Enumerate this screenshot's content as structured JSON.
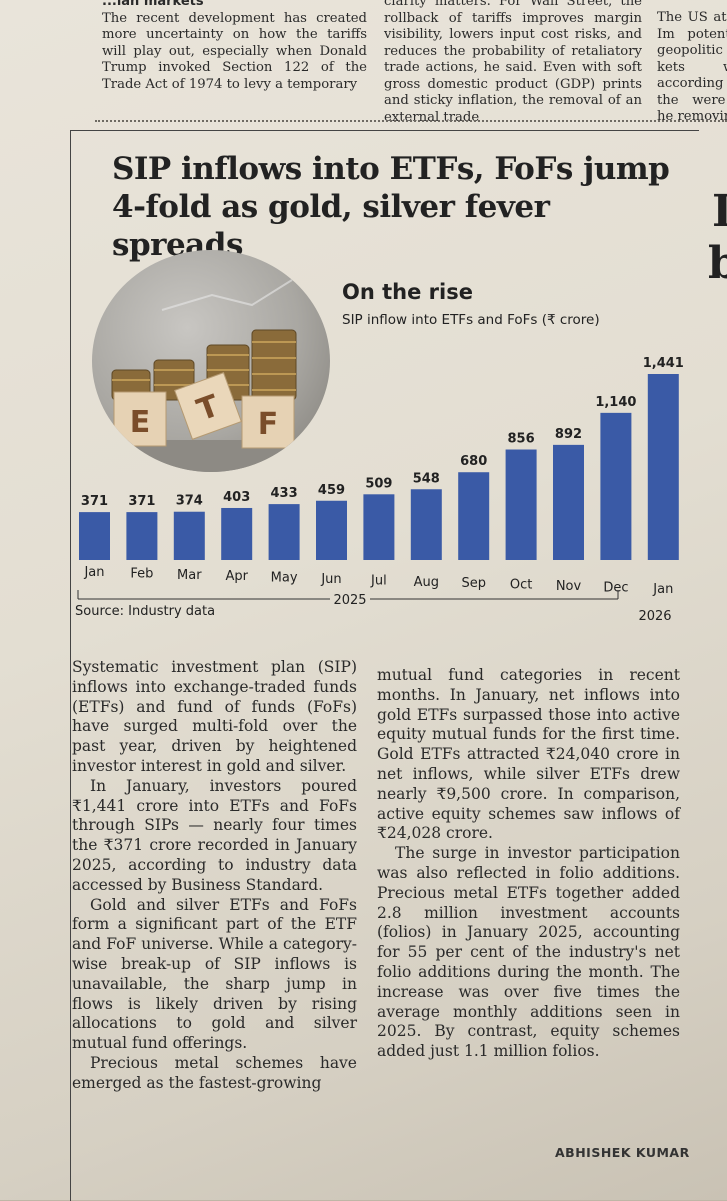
{
  "top_columns": {
    "col1_heading": "...ian markets",
    "col1_text": "The recent development has created more uncertainty on how the tariffs will play out, especially when Donald Trump invoked Section 122 of the Trade Act of 1974 to levy a temporary",
    "col2_text": "clarity matters. For Wall Street, the rollback of tariffs improves margin visibility, lowers input cost risks, and reduces the probability of retaliatory trade actions, he said. Even with soft gross domestic product (GDP) prints and sticky inflation, the removal of an external trade",
    "col3_text": "The US atile. Im potential geopolitic kets will according To the were a he removing"
  },
  "article": {
    "headline_line1": "SIP inflows into ETFs, FoFs jump",
    "headline_line2": "4-fold as gold, silver fever spreads",
    "para1": "Systematic investment plan (SIP) inflows into exchange-traded funds (ETFs) and fund of funds (FoFs) have surged multi-fold over the past year, driven by heightened investor interest in gold and silver.",
    "para2": "In January, investors poured ₹1,441 crore into ETFs and FoFs through SIPs — nearly four times the ₹371 crore recorded in January 2025, according to industry data accessed by Business Standard.",
    "para3": "Gold and silver ETFs and FoFs form a significant part of the ETF and FoF universe. While a category-wise break-up of SIP inflows is unavailable, the sharp jump in flows is likely driven by rising allocations to gold and silver mutual fund offerings.",
    "para4": "Precious metal schemes have emerged as the fastest-growing",
    "para5": "mutual fund categories in recent months. In January, net inflows into gold ETFs surpassed those into active equity mutual funds for the first time. Gold ETFs attracted ₹24,040 crore in net inflows, while silver ETFs drew nearly ₹9,500 crore. In comparison, active equity schemes saw inflows of ₹24,028 crore.",
    "para6": "The surge in investor participation was also reflected in folio additions. Precious metal ETFs together added 2.8 million investment accounts (folios) in January 2025, accounting for 55 per cent of the industry's net folio additions during the month. The increase was over five times the average monthly additions seen in 2025. By contrast, equity schemes added just 1.1 million folios.",
    "byline": "ABHISHEK KUMAR"
  },
  "photo": {
    "letters": [
      "E",
      "T",
      "F"
    ]
  },
  "colors": {
    "bar": "#3a5aa6",
    "text": "#222222"
  },
  "chart_data": {
    "type": "bar",
    "title": "On the rise",
    "subtitle": "SIP inflow into ETFs and FoFs (₹ crore)",
    "categories": [
      "Jan",
      "Feb",
      "Mar",
      "Apr",
      "May",
      "Jun",
      "Jul",
      "Aug",
      "Sep",
      "Oct",
      "Nov",
      "Dec",
      "Jan"
    ],
    "values": [
      371,
      371,
      374,
      403,
      433,
      459,
      509,
      548,
      680,
      856,
      892,
      1140,
      1441
    ],
    "value_labels": [
      "371",
      "371",
      "374",
      "403",
      "433",
      "459",
      "509",
      "548",
      "680",
      "856",
      "892",
      "1,140",
      "1,441"
    ],
    "year_label_2025": "2025",
    "year_label_2026": "2026",
    "source": "Source: Industry data"
  }
}
